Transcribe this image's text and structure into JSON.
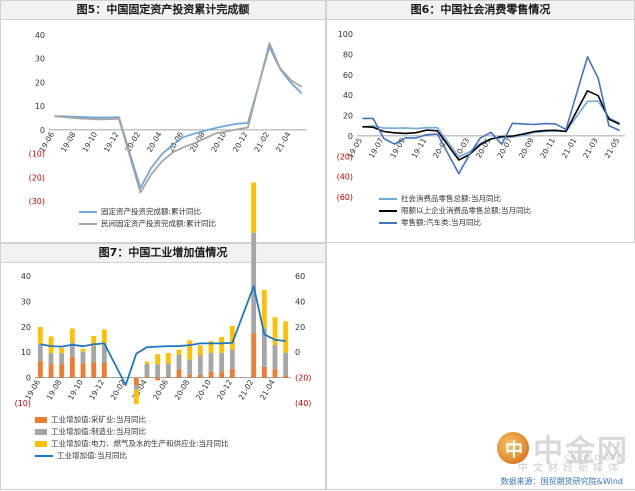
{
  "chart_data": [
    {
      "type": "line",
      "title": "图5：中国固定资产投资累计完成额",
      "categories": [
        "19-06",
        "19-08",
        "19-10",
        "19-12",
        "20-02",
        "20-04",
        "20-06",
        "20-08",
        "20-10",
        "20-12",
        "21-02",
        "21-04"
      ],
      "x": [
        "19-06",
        "19-07",
        "19-08",
        "19-09",
        "19-10",
        "19-11",
        "19-12",
        "20-01",
        "20-02",
        "20-03",
        "20-04",
        "20-05",
        "20-06",
        "20-07",
        "20-08",
        "20-09",
        "20-10",
        "20-11",
        "20-12",
        "21-01",
        "21-02",
        "21-03",
        "21-04",
        "21-05"
      ],
      "ylim": [
        -30,
        40
      ],
      "yticks": [
        40,
        30,
        20,
        10,
        0,
        -10,
        -20,
        -30
      ],
      "ytick_labels": [
        "40",
        "30",
        "20",
        "10",
        "0",
        "(10)",
        "(20)",
        "(30)"
      ],
      "series": [
        {
          "name": "固定资产投资完成额:累计同比",
          "color": "#6fa8dc",
          "values": [
            5.8,
            5.7,
            5.5,
            5.4,
            5.2,
            5.2,
            5.4,
            null,
            -24.5,
            -16.1,
            -10.3,
            -6.3,
            -3.1,
            -1.6,
            -0.3,
            0.8,
            1.8,
            2.6,
            2.9,
            null,
            35.0,
            25.6,
            19.9,
            15.4
          ]
        },
        {
          "name": "民间固定资产投资完成额:累计同比",
          "color": "#a6a6a6",
          "values": [
            5.7,
            5.4,
            4.9,
            4.7,
            4.4,
            4.5,
            4.7,
            null,
            -26.4,
            -18.8,
            -13.3,
            -9.6,
            -7.3,
            -5.7,
            -3.6,
            -1.5,
            -0.7,
            0.2,
            1.0,
            null,
            36.6,
            26.0,
            21.0,
            18.1
          ]
        }
      ]
    },
    {
      "type": "line",
      "title": "图6：中国社会消费零售情况",
      "categories": [
        "19-05",
        "19-07",
        "19-09",
        "19-11",
        "20-01",
        "20-03",
        "20-05",
        "20-07",
        "20-09",
        "20-11",
        "21-01",
        "21-03",
        "21-05"
      ],
      "x": [
        "19-05",
        "19-06",
        "19-07",
        "19-08",
        "19-09",
        "19-10",
        "19-11",
        "19-12",
        "20-01",
        "20-02",
        "20-03",
        "20-04",
        "20-05",
        "20-06",
        "20-07",
        "20-08",
        "20-09",
        "20-10",
        "20-11",
        "20-12",
        "21-01",
        "21-02",
        "21-03",
        "21-04",
        "21-05"
      ],
      "ylim": [
        -60,
        100
      ],
      "yticks": [
        100,
        80,
        60,
        40,
        20,
        0,
        -20,
        -40,
        -60
      ],
      "ytick_labels": [
        "100",
        "80",
        "60",
        "40",
        "20",
        "0",
        "(20)",
        "(40)",
        "(60)"
      ],
      "series": [
        {
          "name": "社会消费品零售总额:当月同比",
          "color": "#6fa8dc",
          "width": 1.6,
          "values": [
            8.6,
            9.8,
            7.6,
            7.5,
            7.8,
            7.2,
            8.0,
            8.0,
            null,
            -20.5,
            -15.8,
            -7.5,
            -2.8,
            -1.8,
            -1.1,
            0.5,
            3.3,
            4.3,
            5.0,
            4.6,
            null,
            33.8,
            34.2,
            17.7,
            12.4
          ]
        },
        {
          "name": "限额以上企业消费品零售总额:当月同比",
          "color": "#000000",
          "width": 1.6,
          "values": [
            9.0,
            8.5,
            4.3,
            3.0,
            2.4,
            3.1,
            5.7,
            5.0,
            null,
            -23.7,
            -18.2,
            -8.6,
            -3.1,
            -0.6,
            -0.2,
            1.8,
            4.2,
            5.2,
            5.5,
            4.4,
            null,
            44.2,
            39.4,
            16.4,
            11.6
          ]
        },
        {
          "name": "零售额:汽车类:当月同比",
          "color": "#4472c4",
          "width": 1.6,
          "values": [
            17.2,
            17.2,
            -2.6,
            -8.1,
            -2.0,
            -2.0,
            1.2,
            1.8,
            null,
            -37.0,
            -18.1,
            -2.2,
            3.5,
            -8.2,
            12.3,
            11.8,
            11.2,
            12.0,
            11.8,
            6.4,
            null,
            77.6,
            56.5,
            10.1,
            5.3
          ]
        }
      ]
    },
    {
      "type": "bar",
      "title": "图7：中国工业增加值情况",
      "categories": [
        "19-06",
        "19-08",
        "19-10",
        "19-12",
        "20-02",
        "20-04",
        "20-06",
        "20-08",
        "20-10",
        "20-12",
        "21-02",
        "21-04"
      ],
      "x": [
        "19-06",
        "19-07",
        "19-08",
        "19-09",
        "19-10",
        "19-11",
        "19-12",
        "20-01",
        "20-02",
        "20-03",
        "20-04",
        "20-05",
        "20-06",
        "20-07",
        "20-08",
        "20-09",
        "20-10",
        "20-11",
        "20-12",
        "21-01",
        "21-02",
        "21-03",
        "21-04",
        "21-05"
      ],
      "ylim": [
        -10,
        40
      ],
      "yticks": [
        40,
        30,
        20,
        10,
        0,
        -10
      ],
      "ytick_labels": [
        "40",
        "30",
        "20",
        "10",
        "0",
        "(10)"
      ],
      "ylim_right": [
        -40,
        60
      ],
      "yticks_right": [
        60,
        40,
        20,
        0,
        -20,
        -40
      ],
      "ytick_labels_right": [
        "60",
        "40",
        "20",
        "0",
        "(20)",
        "(40)"
      ],
      "series": [
        {
          "name": "工业增加值:采矿业:当月同比",
          "kind": "bar",
          "color": "#ed7d31",
          "values": [
            6.5,
            5.3,
            5.2,
            8.1,
            5.6,
            6.1,
            5.9,
            null,
            null,
            -3.0,
            0.4,
            -1.1,
            0.4,
            3.0,
            1.1,
            1.1,
            2.3,
            2.1,
            3.4,
            null,
            17.5,
            4.3,
            3.2,
            0.8
          ]
        },
        {
          "name": "工业增加值:制造业:当月同比",
          "kind": "bar",
          "color": "#a6a6a6",
          "values": [
            6.8,
            4.3,
            4.3,
            5.6,
            4.6,
            6.3,
            7.0,
            null,
            null,
            -1.8,
            5.0,
            5.2,
            5.1,
            6.0,
            6.0,
            7.6,
            7.5,
            7.7,
            7.7,
            null,
            39.5,
            15.0,
            9.6,
            9.0
          ]
        },
        {
          "name": "工业增加值:电力、燃气及水的生产和供应业:当月同比",
          "kind": "bar",
          "color": "#ffc000",
          "values": [
            6.6,
            6.6,
            2.2,
            5.6,
            1.1,
            4.0,
            6.0,
            null,
            null,
            -5.6,
            0.9,
            4.0,
            4.2,
            2.0,
            7.6,
            4.0,
            4.6,
            6.2,
            9.3,
            null,
            19.8,
            15.2,
            11.0,
            12.3
          ]
        },
        {
          "name": "工业增加值:当月同比",
          "kind": "line",
          "color": "#1f77c4",
          "values": [
            6.3,
            4.8,
            4.4,
            5.8,
            4.7,
            6.2,
            6.9,
            null,
            -25.9,
            -1.1,
            3.9,
            4.4,
            4.8,
            4.8,
            5.6,
            6.9,
            6.9,
            7.0,
            7.3,
            null,
            52.0,
            14.1,
            9.8,
            8.8
          ]
        }
      ]
    }
  ],
  "watermark": {
    "logo_char": "中",
    "brand": "中金网",
    "url": "CNGOLD.ORG",
    "tagline": "中文财经新媒体"
  },
  "source_note": "数据来源：国贸期货研究院&Wind"
}
